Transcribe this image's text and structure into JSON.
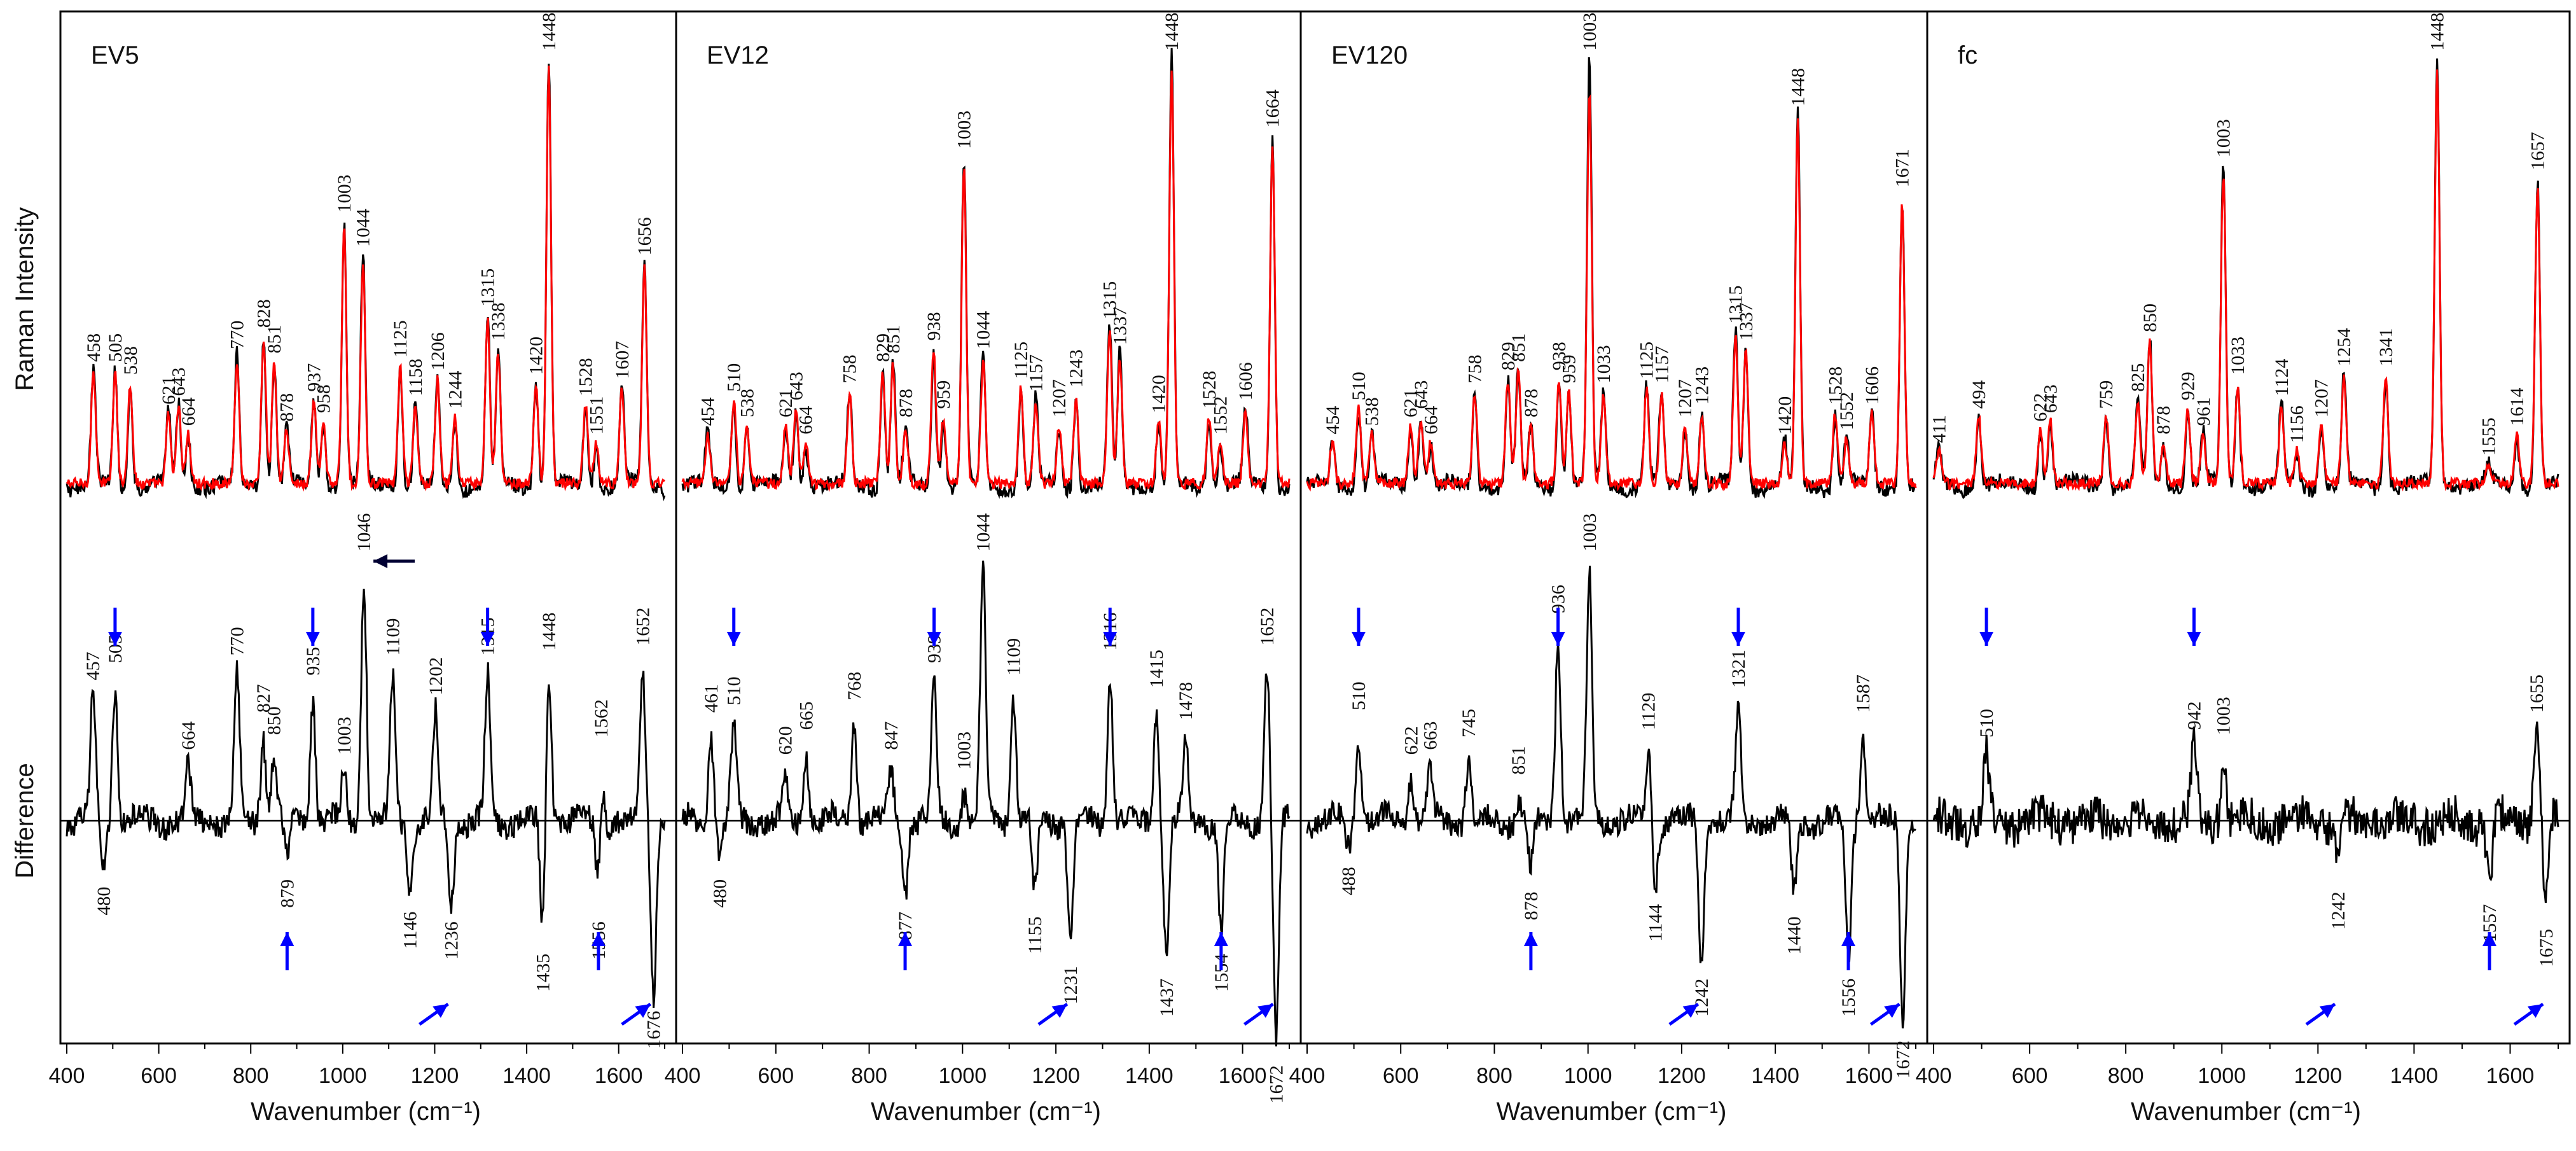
{
  "chart_data": {
    "type": "line",
    "ylabel_top": "Raman Intensity",
    "ylabel_bottom": "Difference",
    "xlabel": "Wavenumber (cm⁻¹)",
    "xlim": [
      400,
      1700
    ],
    "xticks": [
      400,
      600,
      800,
      1000,
      1200,
      1400,
      1600
    ],
    "series_colors": {
      "sample": "#000000",
      "reference": "#ff0000",
      "arrow": "#0000ff"
    },
    "panels": [
      {
        "title": "EV5",
        "strong_peak": 1448,
        "top_peaks": [
          {
            "x": 458,
            "y": 0.27
          },
          {
            "x": 505,
            "y": 0.27
          },
          {
            "x": 538,
            "y": 0.24
          },
          {
            "x": 621,
            "y": 0.17
          },
          {
            "x": 643,
            "y": 0.19
          },
          {
            "x": 664,
            "y": 0.12
          },
          {
            "x": 770,
            "y": 0.3
          },
          {
            "x": 828,
            "y": 0.35
          },
          {
            "x": 851,
            "y": 0.29
          },
          {
            "x": 878,
            "y": 0.13
          },
          {
            "x": 937,
            "y": 0.2
          },
          {
            "x": 958,
            "y": 0.15
          },
          {
            "x": 1003,
            "y": 0.62
          },
          {
            "x": 1044,
            "y": 0.54
          },
          {
            "x": 1125,
            "y": 0.28
          },
          {
            "x": 1158,
            "y": 0.19
          },
          {
            "x": 1206,
            "y": 0.25
          },
          {
            "x": 1244,
            "y": 0.16
          },
          {
            "x": 1315,
            "y": 0.4
          },
          {
            "x": 1338,
            "y": 0.32
          },
          {
            "x": 1420,
            "y": 0.24
          },
          {
            "x": 1448,
            "y": 1.0
          },
          {
            "x": 1528,
            "y": 0.19
          },
          {
            "x": 1551,
            "y": 0.1
          },
          {
            "x": 1607,
            "y": 0.23
          },
          {
            "x": 1656,
            "y": 0.52
          }
        ],
        "diff_peaks": [
          {
            "x": 457,
            "y": 0.48
          },
          {
            "x": 505,
            "y": 0.55
          },
          {
            "x": 664,
            "y": 0.2
          },
          {
            "x": 770,
            "y": 0.58
          },
          {
            "x": 827,
            "y": 0.35
          },
          {
            "x": 850,
            "y": 0.26
          },
          {
            "x": 935,
            "y": 0.5
          },
          {
            "x": 1003,
            "y": 0.18
          },
          {
            "x": 1046,
            "y": 1.0
          },
          {
            "x": 1109,
            "y": 0.58
          },
          {
            "x": 1202,
            "y": 0.42
          },
          {
            "x": 1315,
            "y": 0.58
          },
          {
            "x": 1448,
            "y": 0.6
          },
          {
            "x": 1562,
            "y": 0.25
          },
          {
            "x": 1652,
            "y": 0.62
          },
          {
            "x": 480,
            "y": -0.18
          },
          {
            "x": 879,
            "y": -0.15
          },
          {
            "x": 1146,
            "y": -0.28
          },
          {
            "x": 1236,
            "y": -0.32
          },
          {
            "x": 1435,
            "y": -0.45
          },
          {
            "x": 1556,
            "y": -0.32
          },
          {
            "x": 1676,
            "y": -0.68
          }
        ],
        "arrows_down": [
          505,
          935,
          1315
        ],
        "arrows_up": [
          879,
          1236,
          1556,
          1676
        ],
        "arrow_dark": 1046
      },
      {
        "title": "EV12",
        "strong_peak": 1448,
        "top_peaks": [
          {
            "x": 454,
            "y": 0.12
          },
          {
            "x": 510,
            "y": 0.2
          },
          {
            "x": 538,
            "y": 0.14
          },
          {
            "x": 621,
            "y": 0.14
          },
          {
            "x": 643,
            "y": 0.18
          },
          {
            "x": 664,
            "y": 0.1
          },
          {
            "x": 758,
            "y": 0.22
          },
          {
            "x": 829,
            "y": 0.27
          },
          {
            "x": 851,
            "y": 0.29
          },
          {
            "x": 878,
            "y": 0.14
          },
          {
            "x": 938,
            "y": 0.32
          },
          {
            "x": 959,
            "y": 0.16
          },
          {
            "x": 1003,
            "y": 0.77
          },
          {
            "x": 1044,
            "y": 0.3
          },
          {
            "x": 1125,
            "y": 0.23
          },
          {
            "x": 1157,
            "y": 0.2
          },
          {
            "x": 1207,
            "y": 0.14
          },
          {
            "x": 1243,
            "y": 0.21
          },
          {
            "x": 1315,
            "y": 0.37
          },
          {
            "x": 1337,
            "y": 0.31
          },
          {
            "x": 1420,
            "y": 0.15
          },
          {
            "x": 1448,
            "y": 1.0
          },
          {
            "x": 1528,
            "y": 0.16
          },
          {
            "x": 1552,
            "y": 0.1
          },
          {
            "x": 1606,
            "y": 0.18
          },
          {
            "x": 1664,
            "y": 0.82
          }
        ],
        "diff_peaks": [
          {
            "x": 461,
            "y": 0.35
          },
          {
            "x": 510,
            "y": 0.38
          },
          {
            "x": 620,
            "y": 0.18
          },
          {
            "x": 665,
            "y": 0.28
          },
          {
            "x": 768,
            "y": 0.4
          },
          {
            "x": 847,
            "y": 0.2
          },
          {
            "x": 939,
            "y": 0.55
          },
          {
            "x": 1003,
            "y": 0.12
          },
          {
            "x": 1044,
            "y": 1.0
          },
          {
            "x": 1109,
            "y": 0.5
          },
          {
            "x": 1316,
            "y": 0.6
          },
          {
            "x": 1415,
            "y": 0.45
          },
          {
            "x": 1478,
            "y": 0.32
          },
          {
            "x": 1652,
            "y": 0.62
          },
          {
            "x": 480,
            "y": -0.15
          },
          {
            "x": 877,
            "y": -0.28
          },
          {
            "x": 1155,
            "y": -0.3
          },
          {
            "x": 1231,
            "y": -0.5
          },
          {
            "x": 1437,
            "y": -0.55
          },
          {
            "x": 1554,
            "y": -0.45
          },
          {
            "x": 1672,
            "y": -0.9
          }
        ],
        "arrows_down": [
          510,
          939,
          1316
        ],
        "arrows_up": [
          877,
          1231,
          1554,
          1672
        ],
        "arrow_dark": null
      },
      {
        "title": "EV120",
        "strong_peak": 1003,
        "top_peaks": [
          {
            "x": 454,
            "y": 0.1
          },
          {
            "x": 510,
            "y": 0.18
          },
          {
            "x": 538,
            "y": 0.12
          },
          {
            "x": 621,
            "y": 0.14
          },
          {
            "x": 643,
            "y": 0.16
          },
          {
            "x": 664,
            "y": 0.1
          },
          {
            "x": 758,
            "y": 0.22
          },
          {
            "x": 829,
            "y": 0.25
          },
          {
            "x": 851,
            "y": 0.27
          },
          {
            "x": 878,
            "y": 0.14
          },
          {
            "x": 938,
            "y": 0.25
          },
          {
            "x": 959,
            "y": 0.22
          },
          {
            "x": 1003,
            "y": 1.0
          },
          {
            "x": 1033,
            "y": 0.22
          },
          {
            "x": 1125,
            "y": 0.23
          },
          {
            "x": 1157,
            "y": 0.22
          },
          {
            "x": 1207,
            "y": 0.14
          },
          {
            "x": 1243,
            "y": 0.17
          },
          {
            "x": 1315,
            "y": 0.36
          },
          {
            "x": 1337,
            "y": 0.32
          },
          {
            "x": 1420,
            "y": 0.1
          },
          {
            "x": 1448,
            "y": 0.87
          },
          {
            "x": 1528,
            "y": 0.17
          },
          {
            "x": 1552,
            "y": 0.11
          },
          {
            "x": 1606,
            "y": 0.17
          },
          {
            "x": 1671,
            "y": 0.68
          }
        ],
        "diff_peaks": [
          {
            "x": 510,
            "y": 0.36
          },
          {
            "x": 622,
            "y": 0.18
          },
          {
            "x": 663,
            "y": 0.2
          },
          {
            "x": 745,
            "y": 0.25
          },
          {
            "x": 851,
            "y": 0.1
          },
          {
            "x": 936,
            "y": 0.75
          },
          {
            "x": 1003,
            "y": 1.0
          },
          {
            "x": 1129,
            "y": 0.28
          },
          {
            "x": 1321,
            "y": 0.45
          },
          {
            "x": 1587,
            "y": 0.35
          },
          {
            "x": 488,
            "y": -0.1
          },
          {
            "x": 878,
            "y": -0.2
          },
          {
            "x": 1144,
            "y": -0.25
          },
          {
            "x": 1242,
            "y": -0.55
          },
          {
            "x": 1440,
            "y": -0.3
          },
          {
            "x": 1556,
            "y": -0.55
          },
          {
            "x": 1672,
            "y": -0.8
          }
        ],
        "arrows_down": [
          510,
          936,
          1321
        ],
        "arrows_up": [
          878,
          1242,
          1556,
          1672
        ],
        "arrow_dark": null
      },
      {
        "title": "fc",
        "strong_peak": 1448,
        "top_peaks": [
          {
            "x": 411,
            "y": 0.08
          },
          {
            "x": 494,
            "y": 0.16
          },
          {
            "x": 622,
            "y": 0.13
          },
          {
            "x": 643,
            "y": 0.15
          },
          {
            "x": 759,
            "y": 0.16
          },
          {
            "x": 825,
            "y": 0.2
          },
          {
            "x": 850,
            "y": 0.34
          },
          {
            "x": 878,
            "y": 0.1
          },
          {
            "x": 929,
            "y": 0.18
          },
          {
            "x": 961,
            "y": 0.12
          },
          {
            "x": 1003,
            "y": 0.75
          },
          {
            "x": 1033,
            "y": 0.24
          },
          {
            "x": 1124,
            "y": 0.19
          },
          {
            "x": 1156,
            "y": 0.08
          },
          {
            "x": 1207,
            "y": 0.14
          },
          {
            "x": 1254,
            "y": 0.26
          },
          {
            "x": 1341,
            "y": 0.26
          },
          {
            "x": 1448,
            "y": 1.0
          },
          {
            "x": 1555,
            "y": 0.05
          },
          {
            "x": 1614,
            "y": 0.12
          },
          {
            "x": 1657,
            "y": 0.72
          }
        ],
        "diff_peaks": [
          {
            "x": 510,
            "y": 0.25
          },
          {
            "x": 942,
            "y": 0.28
          },
          {
            "x": 1003,
            "y": 0.26
          },
          {
            "x": 1655,
            "y": 0.35
          },
          {
            "x": 1242,
            "y": -0.2
          },
          {
            "x": 1557,
            "y": -0.25
          },
          {
            "x": 1675,
            "y": -0.35
          }
        ],
        "arrows_down": [
          510,
          942
        ],
        "arrows_up": [
          1242,
          1557,
          1675
        ],
        "arrow_dark": null
      }
    ]
  }
}
